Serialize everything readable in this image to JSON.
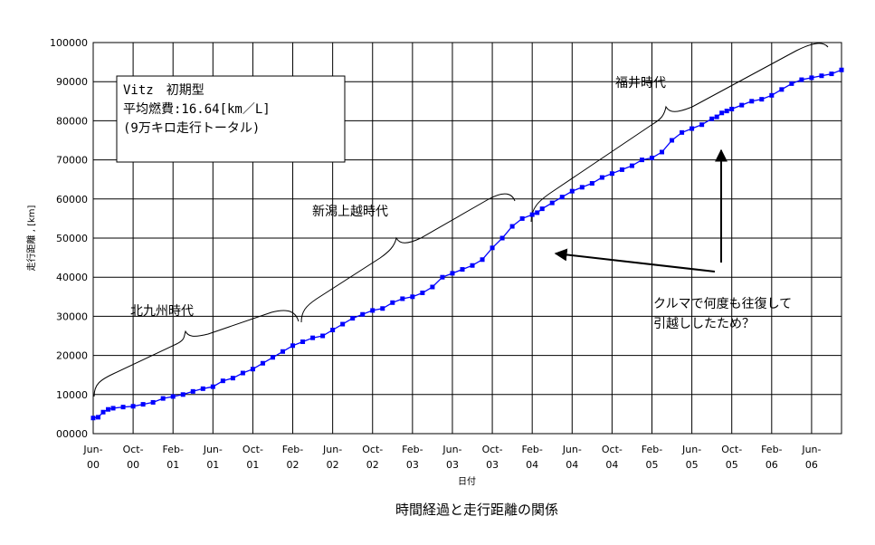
{
  "chart_data": {
    "type": "line",
    "title": "時間経過と走行距離の関係",
    "xlabel": "日付",
    "ylabel": "走行距離 , [km]",
    "ylim": [
      0,
      100000
    ],
    "ytick_labels": [
      "00000",
      "10000",
      "20000",
      "30000",
      "40000",
      "50000",
      "60000",
      "70000",
      "80000",
      "90000",
      "100000"
    ],
    "xtick_labels": [
      [
        "Jun-",
        "00"
      ],
      [
        "Oct-",
        "00"
      ],
      [
        "Feb-",
        "01"
      ],
      [
        "Jun-",
        "01"
      ],
      [
        "Oct-",
        "01"
      ],
      [
        "Feb-",
        "02"
      ],
      [
        "Jun-",
        "02"
      ],
      [
        "Oct-",
        "02"
      ],
      [
        "Feb-",
        "03"
      ],
      [
        "Jun-",
        "03"
      ],
      [
        "Oct-",
        "03"
      ],
      [
        "Feb-",
        "04"
      ],
      [
        "Jun-",
        "04"
      ],
      [
        "Oct-",
        "04"
      ],
      [
        "Feb-",
        "05"
      ],
      [
        "Jun-",
        "05"
      ],
      [
        "Oct-",
        "05"
      ],
      [
        "Feb-",
        "06"
      ],
      [
        "Jun-",
        "06"
      ]
    ],
    "x_months": [
      0,
      75
    ],
    "grid": true,
    "series": [
      {
        "color": "#0000ff",
        "x": [
          0,
          0.5,
          1,
          1.5,
          2,
          3,
          4,
          5,
          6,
          7,
          8,
          9,
          10,
          11,
          12,
          13,
          14,
          15,
          16,
          17,
          18,
          19,
          20,
          21,
          22,
          23,
          24,
          25,
          26,
          27,
          28,
          29,
          30,
          31,
          32,
          33,
          34,
          35,
          36,
          37,
          38,
          39,
          40,
          41,
          42,
          43,
          44,
          44.5,
          45,
          46,
          47,
          48,
          49,
          50,
          51,
          52,
          53,
          54,
          55,
          56,
          57,
          58,
          59,
          60,
          61,
          62,
          62.5,
          63,
          63.5,
          64,
          65,
          66,
          67,
          68,
          69,
          70,
          71,
          72,
          73,
          74,
          75
        ],
        "y": [
          4000,
          4200,
          5500,
          6200,
          6500,
          6800,
          7000,
          7500,
          8000,
          9000,
          9500,
          10000,
          10800,
          11500,
          12000,
          13500,
          14200,
          15500,
          16500,
          18000,
          19500,
          21000,
          22500,
          23500,
          24500,
          25000,
          26500,
          28000,
          29500,
          30500,
          31500,
          32000,
          33500,
          34500,
          35000,
          36000,
          37500,
          40000,
          41000,
          42000,
          43000,
          44500,
          47500,
          50000,
          53000,
          55000,
          56000,
          56500,
          57500,
          59000,
          60500,
          62000,
          63000,
          64000,
          65500,
          66500,
          67500,
          68500,
          70000,
          70500,
          72000,
          75000,
          77000,
          78000,
          79000,
          80500,
          81000,
          82000,
          82500,
          83000,
          84000,
          85000,
          85500,
          86500,
          88000,
          89500,
          90500,
          91000,
          91500,
          92000,
          93000
        ]
      }
    ],
    "annotations": {
      "infobox": [
        "Vitz　初期型",
        "平均燃費:16.64[km／L]",
        "(9万キロ走行トータル)"
      ],
      "periods": [
        "北九州時代",
        "新潟上越時代",
        "福井時代"
      ],
      "note": [
        "クルマで何度も往復して",
        "引越ししたため？"
      ]
    }
  }
}
